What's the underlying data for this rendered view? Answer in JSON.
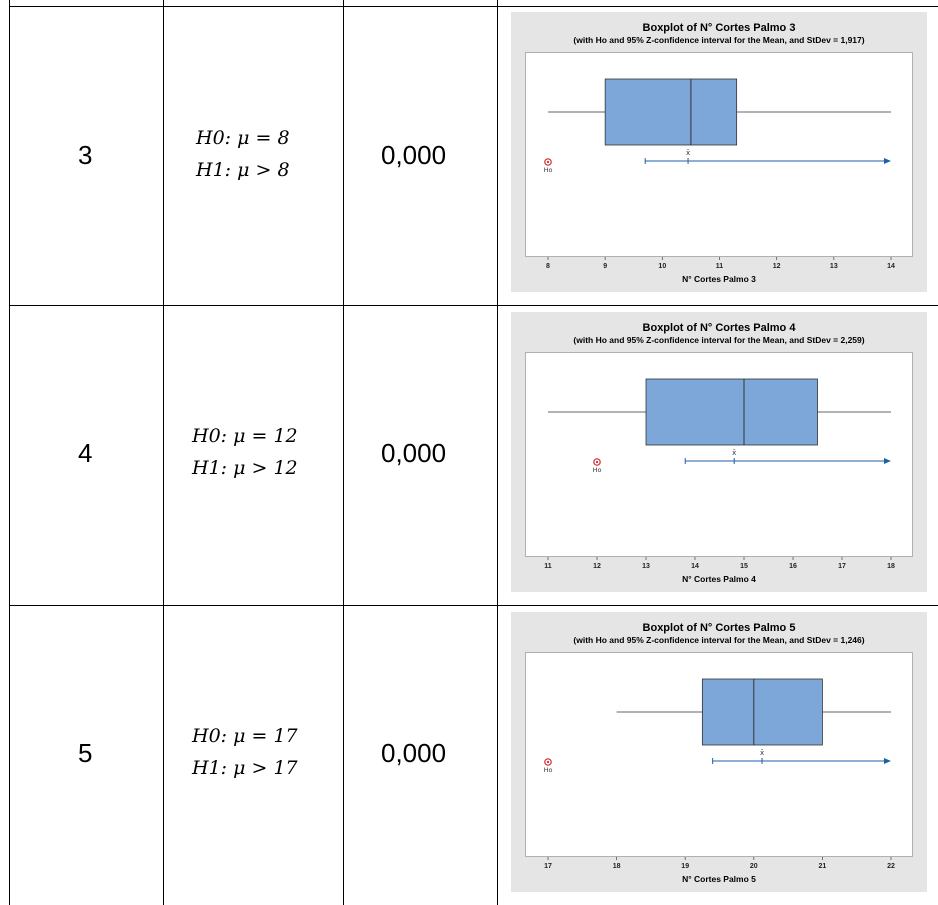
{
  "rows": [
    {
      "id": "3",
      "h0": "H0: μ = 8",
      "h1": "H1: μ > 8",
      "p": "0,000"
    },
    {
      "id": "4",
      "h0": "H0: μ = 12",
      "h1": "H1: μ > 12",
      "p": "0,000"
    },
    {
      "id": "5",
      "h0": "H0: μ = 17",
      "h1": "H1: μ > 17",
      "p": "0,000"
    }
  ],
  "chart_data": [
    {
      "type": "boxplot",
      "title": "Boxplot of N° Cortes Palmo 3",
      "subtitle": "(with Ho and 95% Z-confidence interval for the Mean, and StDev = 1,917)",
      "xlabel": "N° Cortes Palmo 3",
      "xlim": [
        8,
        14
      ],
      "ticks": [
        "8",
        "9",
        "10",
        "11",
        "12",
        "13",
        "14"
      ],
      "whisker_low": 8.0,
      "q1": 9.0,
      "median": 10.5,
      "q3": 11.3,
      "whisker_high": 14.0,
      "mean": 10.45,
      "ci_low": 9.7,
      "ci_high": 14.0,
      "h0": 8,
      "h0_label": "Ho",
      "mean_label": "x̄",
      "box_color": "#7da7d9",
      "ci_color": "#1f5fa6",
      "h0_color": "#d62828"
    },
    {
      "type": "boxplot",
      "title": "Boxplot of N° Cortes Palmo 4",
      "subtitle": "(with Ho and 95% Z-confidence interval for the Mean, and StDev = 2,259)",
      "xlabel": "N° Cortes Palmo 4",
      "xlim": [
        11,
        18
      ],
      "ticks": [
        "11",
        "12",
        "13",
        "14",
        "15",
        "16",
        "17",
        "18"
      ],
      "whisker_low": 11.0,
      "q1": 13.0,
      "median": 15.0,
      "q3": 16.5,
      "whisker_high": 18.0,
      "mean": 14.8,
      "ci_low": 13.8,
      "ci_high": 18.0,
      "h0": 12,
      "h0_label": "Ho",
      "mean_label": "x̄",
      "box_color": "#7da7d9",
      "ci_color": "#1f5fa6",
      "h0_color": "#d62828"
    },
    {
      "type": "boxplot",
      "title": "Boxplot of N° Cortes Palmo 5",
      "subtitle": "(with Ho and 95% Z-confidence interval for the Mean, and StDev = 1,246)",
      "xlabel": "N° Cortes Palmo 5",
      "xlim": [
        17,
        22
      ],
      "ticks": [
        "17",
        "18",
        "19",
        "20",
        "21",
        "22"
      ],
      "whisker_low": 18.0,
      "q1": 19.25,
      "median": 20.0,
      "q3": 21.0,
      "whisker_high": 22.0,
      "mean": 20.12,
      "ci_low": 19.4,
      "ci_high": 22.0,
      "h0": 17,
      "h0_label": "Ho",
      "mean_label": "x̄",
      "box_color": "#7da7d9",
      "ci_color": "#1f5fa6",
      "h0_color": "#d62828"
    }
  ]
}
